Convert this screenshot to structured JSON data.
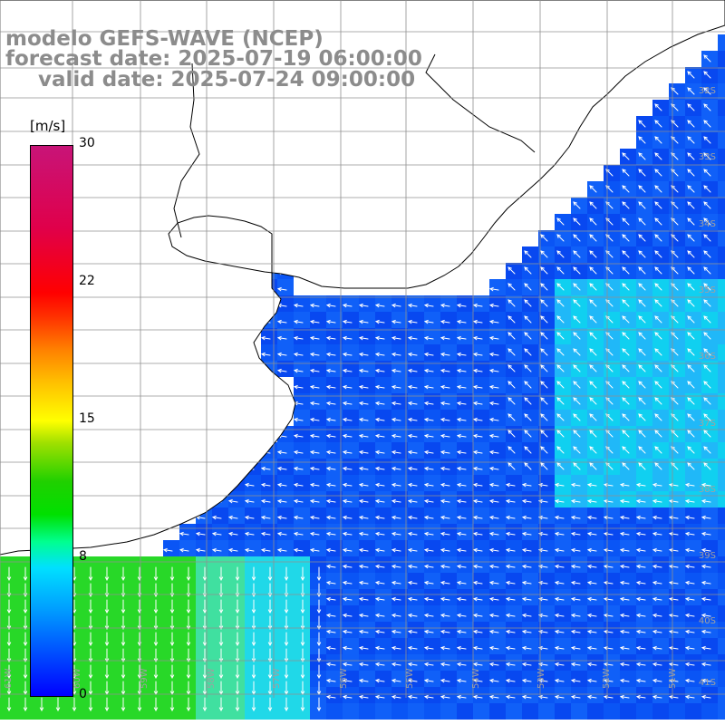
{
  "title": {
    "line1": "modelo GEFS-WAVE (NCEP)",
    "line2": "forecast date: 2025-07-19 06:00:00",
    "line3": "valid date: 2025-07-24 09:00:00"
  },
  "colorbar": {
    "unit": "[m/s]",
    "min": 0,
    "max": 30,
    "ticks": [
      "30",
      "22",
      "15",
      "8",
      "0"
    ],
    "tick_values": [
      30,
      22,
      15,
      8,
      0
    ]
  },
  "map": {
    "lat_labels": [
      "32S",
      "33S",
      "34S",
      "35S",
      "36S",
      "37S",
      "38S",
      "39S",
      "40S",
      "41S"
    ],
    "lon_labels": [
      "61W",
      "60W",
      "59W",
      "58W",
      "57W",
      "56W",
      "55W",
      "54W",
      "53W",
      "52W",
      "51W"
    ],
    "colors": {
      "land": "#ffffff",
      "coast": "#000000",
      "grid": "#909090",
      "arrow": "#ffffff",
      "label": "#a0a0a0",
      "title": "#8c8c8c"
    }
  }
}
